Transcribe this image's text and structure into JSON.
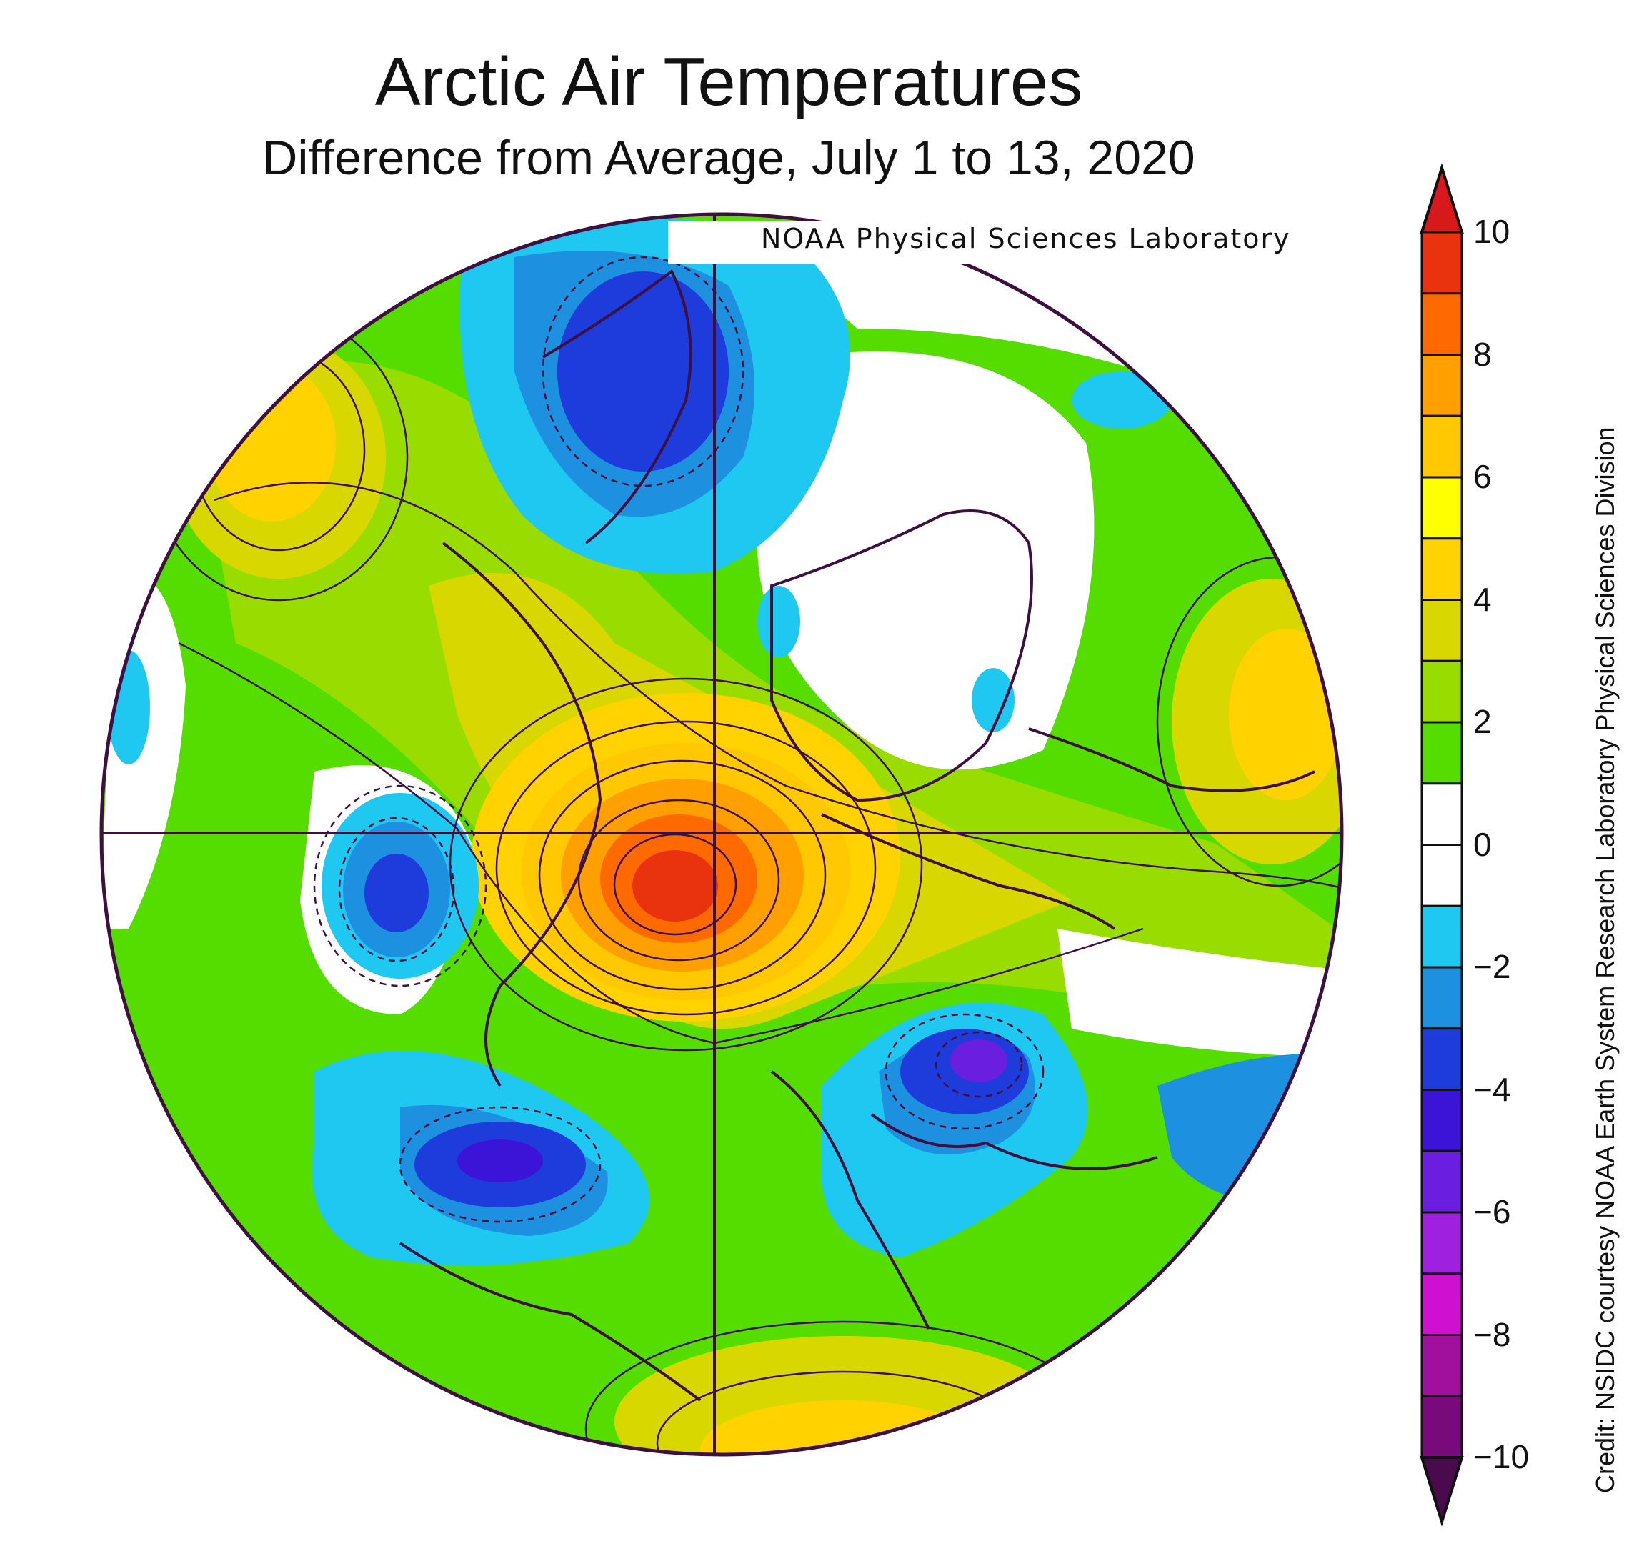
{
  "title": "Arctic Air Temperatures",
  "subtitle": "Difference from Average, July 1 to 13, 2020",
  "source_label": "NOAA Physical Sciences Laboratory",
  "side_credit": "Credit: NSIDC courtesy NOAA Earth System Research Laboratory Physical Sciences Division",
  "colorbar": {
    "ticks": [
      "10",
      "8",
      "6",
      "4",
      "2",
      "0",
      "−2",
      "−4",
      "−6",
      "−8",
      "−10"
    ],
    "bins": [
      {
        "range": "8 to 10",
        "color": "#d7191c"
      },
      {
        "range": "9 to 10",
        "color": "#e8330e"
      },
      {
        "range": "8 to 9",
        "color": "#ff6a00"
      },
      {
        "range": "7 to 8",
        "color": "#ff9f00"
      },
      {
        "range": "6 to 7",
        "color": "#ffc800"
      },
      {
        "range": "5 to 6",
        "color": "#ffff00"
      },
      {
        "range": "4 to 5",
        "color": "#ffd200"
      },
      {
        "range": "3 to 4",
        "color": "#d8d800"
      },
      {
        "range": "2 to 3",
        "color": "#99dd00"
      },
      {
        "range": "1 to 2",
        "color": "#55dd00"
      },
      {
        "range": "0 to 1",
        "color": "#ffffff"
      },
      {
        "range": "-1 to 0",
        "color": "#ffffff"
      },
      {
        "range": "-2 to -1",
        "color": "#1ec8f0"
      },
      {
        "range": "-3 to -2",
        "color": "#1e90e0"
      },
      {
        "range": "-4 to -3",
        "color": "#1e3cdc"
      },
      {
        "range": "-5 to -4",
        "color": "#3c14d8"
      },
      {
        "range": "-6 to -5",
        "color": "#6a1ee0"
      },
      {
        "range": "-7 to -6",
        "color": "#a020e0"
      },
      {
        "range": "-8 to -7",
        "color": "#d010d0"
      },
      {
        "range": "-9 to -8",
        "color": "#a0109c"
      },
      {
        "range": "-10 to -9",
        "color": "#780a7c"
      }
    ]
  },
  "regions": [
    {
      "name": "temperature-map-anomalies",
      "peak_warm": 10,
      "peak_cold": -6
    }
  ]
}
